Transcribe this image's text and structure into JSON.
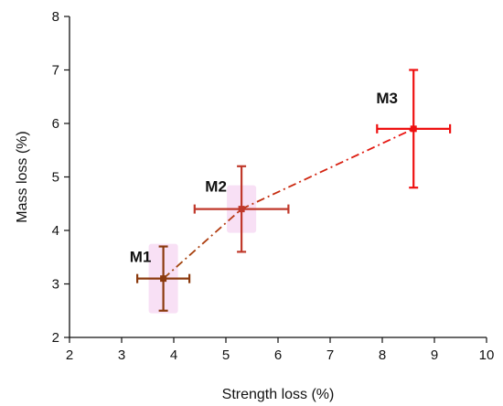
{
  "chart_data": {
    "type": "scatter",
    "title": "",
    "xlabel": "Strength loss (%)",
    "ylabel": "Mass loss (%)",
    "xlim": [
      2,
      10
    ],
    "ylim": [
      2,
      8
    ],
    "xticks": [
      "2",
      "3",
      "4",
      "5",
      "6",
      "7",
      "8",
      "9",
      "10"
    ],
    "yticks": [
      "2",
      "3",
      "4",
      "5",
      "6",
      "7",
      "8"
    ],
    "grid": false,
    "points": [
      {
        "label": "M1",
        "x": 3.8,
        "y": 3.1,
        "x_err": [
          0.5,
          0.5
        ],
        "y_err": [
          0.6,
          0.6
        ],
        "color": "#8b3a0e"
      },
      {
        "label": "M2",
        "x": 5.3,
        "y": 4.4,
        "x_err": [
          0.9,
          0.9
        ],
        "y_err": [
          0.8,
          0.8
        ],
        "color": "#c0392b"
      },
      {
        "label": "M3",
        "x": 8.6,
        "y": 5.9,
        "x_err": [
          0.7,
          0.7
        ],
        "y_err": [
          1.1,
          1.1
        ],
        "color": "#ee1111"
      }
    ],
    "connector": {
      "style": "dash-dot",
      "colors": [
        "#9c4a10",
        "#ee1111"
      ]
    },
    "highlight_color": "#f3c6ec"
  }
}
